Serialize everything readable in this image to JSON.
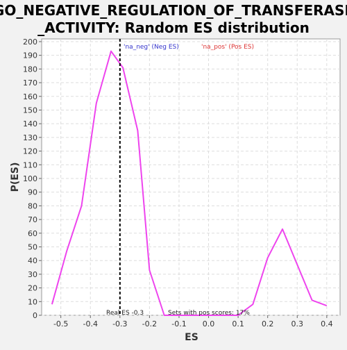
{
  "chart_data": {
    "type": "line",
    "title_lines": [
      "GO_NEGATIVE_REGULATION_OF_TRANSFERASE",
      "_ACTIVITY: Random ES distribution"
    ],
    "xlabel": "ES",
    "ylabel": "P(ES)",
    "xlim": [
      -0.565,
      0.445
    ],
    "ylim": [
      0,
      202
    ],
    "xticks": [
      -0.5,
      -0.4,
      -0.3,
      -0.2,
      -0.1,
      0.0,
      0.1,
      0.2,
      0.3,
      0.4
    ],
    "xtick_labels": [
      "-0.5",
      "-0.4",
      "-0.3",
      "-0.2",
      "-0.1",
      "0.0",
      "0.1",
      "0.2",
      "0.3",
      "0.4"
    ],
    "yticks": [
      0,
      10,
      20,
      30,
      40,
      50,
      60,
      70,
      80,
      90,
      100,
      110,
      120,
      130,
      140,
      150,
      160,
      170,
      180,
      190,
      200
    ],
    "grid": true,
    "series": [
      {
        "color": "#ee44ee",
        "x": [
          -0.53,
          -0.48,
          -0.43,
          -0.38,
          -0.33,
          -0.29,
          -0.24,
          -0.2,
          -0.15,
          -0.1,
          -0.05,
          0.0,
          0.05,
          0.1,
          0.15,
          0.2,
          0.25,
          0.3,
          0.35,
          0.4
        ],
        "y": [
          8,
          47,
          80,
          155,
          193,
          181,
          135,
          33,
          0,
          0,
          0,
          0,
          0,
          0,
          8,
          42,
          63,
          37,
          11,
          7
        ]
      }
    ],
    "real_es_line": {
      "x": -0.3,
      "color": "#000000",
      "style": "dashed"
    },
    "legend": [
      {
        "label": "'na_neg' (Neg ES)",
        "color": "#3333cc"
      },
      {
        "label": "'na_pos' (Pos ES)",
        "color": "#dd3333"
      }
    ],
    "annotations": {
      "real_es": "Real ES -0.3",
      "pos_scores": "Sets with pos scores: 17%"
    }
  }
}
